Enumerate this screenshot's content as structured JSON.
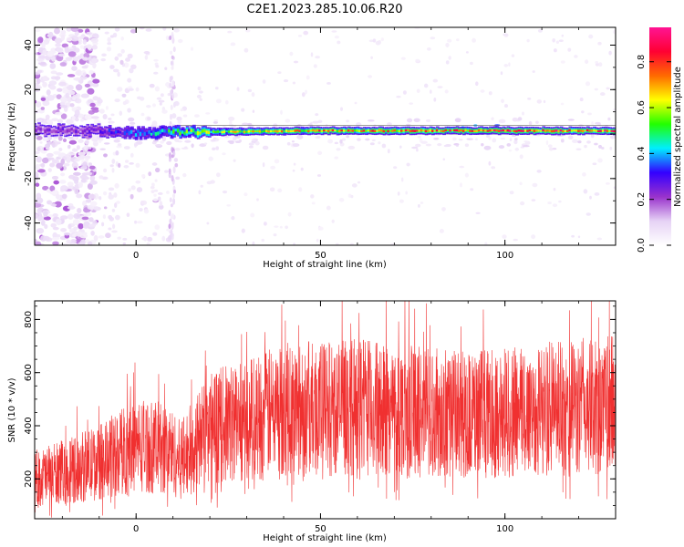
{
  "title": "C2E1.2023.285.10.06.R20",
  "chart_data": [
    {
      "type": "heatmap",
      "xlabel": "Height of straight line (km)",
      "ylabel": "Frequency (Hz)",
      "xlim": [
        -27.5,
        130
      ],
      "ylim": [
        -50,
        48
      ],
      "x_ticks": [
        0,
        50,
        100
      ],
      "y_ticks": [
        -40,
        -20,
        0,
        20,
        40
      ],
      "ridge": {
        "frequency": [
          [
            -27,
            2
          ],
          [
            -10,
            1.5
          ],
          [
            0,
            0.5
          ],
          [
            10,
            1
          ],
          [
            20,
            1
          ],
          [
            50,
            1.5
          ],
          [
            100,
            1.5
          ],
          [
            130,
            1.5
          ]
        ],
        "amplitude": [
          [
            -27,
            0.22
          ],
          [
            -15,
            0.25
          ],
          [
            -5,
            0.32
          ],
          [
            10,
            0.5
          ],
          [
            25,
            0.62
          ],
          [
            50,
            0.72
          ],
          [
            80,
            0.78
          ],
          [
            130,
            0.85
          ]
        ],
        "secondary_lines_hz": [
          0,
          4
        ]
      },
      "colorbar": {
        "label": "Normalized spectral amplitude",
        "ticks": [
          0.0,
          0.2,
          0.4,
          0.6,
          0.8
        ],
        "range": [
          0,
          0.95
        ],
        "colors": [
          "#ffffff",
          "#e6d2f5",
          "#9932cc",
          "#3300ff",
          "#00eeff",
          "#22ff00",
          "#ffff00",
          "#ff6a00",
          "#ff0033",
          "#ff1493"
        ]
      }
    },
    {
      "type": "line",
      "xlabel": "Height of straight line (km)",
      "ylabel": "SNR (10 * v/v)",
      "xlim": [
        -27.5,
        130
      ],
      "ylim": [
        50,
        870
      ],
      "x_ticks": [
        0,
        50,
        100
      ],
      "y_ticks": [
        200,
        400,
        600,
        800
      ],
      "color": "#f03030",
      "trend": [
        [
          -27,
          200
        ],
        [
          -10,
          260
        ],
        [
          0,
          330
        ],
        [
          9,
          310
        ],
        [
          12,
          270
        ],
        [
          20,
          390
        ],
        [
          40,
          460
        ],
        [
          60,
          470
        ],
        [
          90,
          440
        ],
        [
          130,
          480
        ]
      ]
    }
  ]
}
